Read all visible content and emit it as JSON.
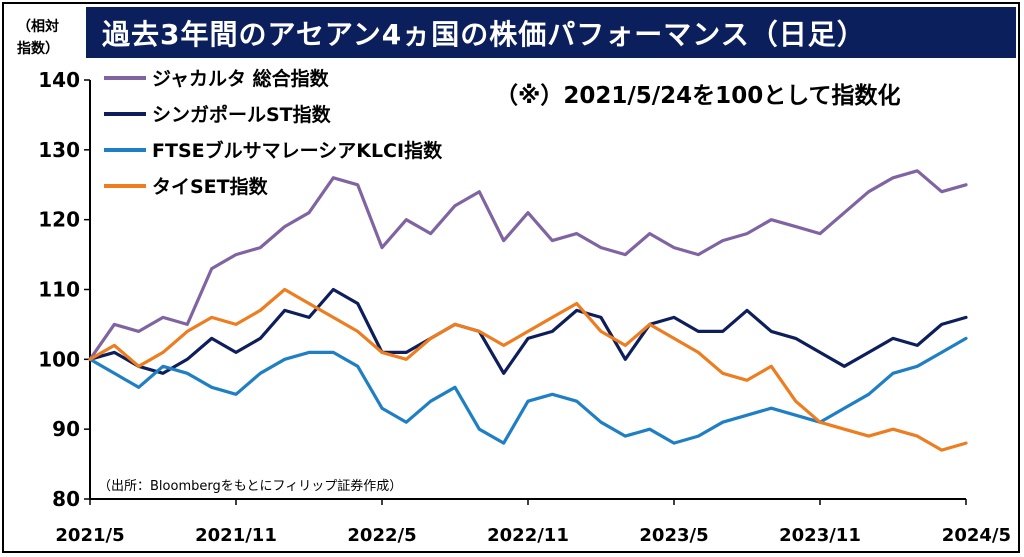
{
  "title": "過去3年間のアセアン4ヵ国の株価パフォーマンス（日足）",
  "y_unit_label_line1": "（相対",
  "y_unit_label_line2": "指数）",
  "note": "（※）2021/5/24を100として指数化",
  "source": "（出所：Bloombergをもとにフィリップ証券作成）",
  "chart_data": {
    "type": "line",
    "title": "過去3年間のアセアン4ヵ国の株価パフォーマンス（日足）",
    "xlabel": "",
    "ylabel": "（相対指数）",
    "ylim": [
      80,
      140
    ],
    "yticks": [
      80,
      90,
      100,
      110,
      120,
      130,
      140
    ],
    "xticks": [
      "2021/5",
      "2021/11",
      "2022/5",
      "2022/11",
      "2023/5",
      "2023/11",
      "2024/5"
    ],
    "grid": false,
    "legend_position": "top-left",
    "x": [
      "2021/5",
      "2021/6",
      "2021/7",
      "2021/8",
      "2021/9",
      "2021/10",
      "2021/11",
      "2021/12",
      "2022/1",
      "2022/2",
      "2022/3",
      "2022/4",
      "2022/5",
      "2022/6",
      "2022/7",
      "2022/8",
      "2022/9",
      "2022/10",
      "2022/11",
      "2022/12",
      "2023/1",
      "2023/2",
      "2023/3",
      "2023/4",
      "2023/5",
      "2023/6",
      "2023/7",
      "2023/8",
      "2023/9",
      "2023/10",
      "2023/11",
      "2023/12",
      "2024/1",
      "2024/2",
      "2024/3",
      "2024/4",
      "2024/5"
    ],
    "series": [
      {
        "name": "ジャカルタ 総合指数",
        "color": "#8064a2",
        "values": [
          100,
          105,
          104,
          106,
          105,
          113,
          115,
          116,
          119,
          121,
          126,
          125,
          116,
          120,
          118,
          122,
          124,
          117,
          121,
          117,
          118,
          116,
          115,
          118,
          116,
          115,
          117,
          118,
          120,
          119,
          118,
          121,
          124,
          126,
          127,
          124,
          125
        ]
      },
      {
        "name": "シンガポールST指数",
        "color": "#0e1e5b",
        "values": [
          100,
          101,
          99,
          98,
          100,
          103,
          101,
          103,
          107,
          106,
          110,
          108,
          101,
          101,
          103,
          105,
          104,
          98,
          103,
          104,
          107,
          106,
          100,
          105,
          106,
          104,
          104,
          107,
          104,
          103,
          101,
          99,
          101,
          103,
          102,
          105,
          106
        ]
      },
      {
        "name": "FTSEブルサマレーシアKLCI指数",
        "color": "#1f7fc4",
        "values": [
          100,
          98,
          96,
          99,
          98,
          96,
          95,
          98,
          100,
          101,
          101,
          99,
          93,
          91,
          94,
          96,
          90,
          88,
          94,
          95,
          94,
          91,
          89,
          90,
          88,
          89,
          91,
          92,
          93,
          92,
          91,
          93,
          95,
          98,
          99,
          101,
          103
        ]
      },
      {
        "name": "タイSET指数",
        "color": "#ed7d1f",
        "values": [
          100,
          102,
          99,
          101,
          104,
          106,
          105,
          107,
          110,
          108,
          106,
          104,
          101,
          100,
          103,
          105,
          104,
          102,
          104,
          106,
          108,
          104,
          102,
          105,
          103,
          101,
          98,
          97,
          99,
          94,
          91,
          90,
          89,
          90,
          89,
          87,
          88
        ]
      }
    ]
  }
}
